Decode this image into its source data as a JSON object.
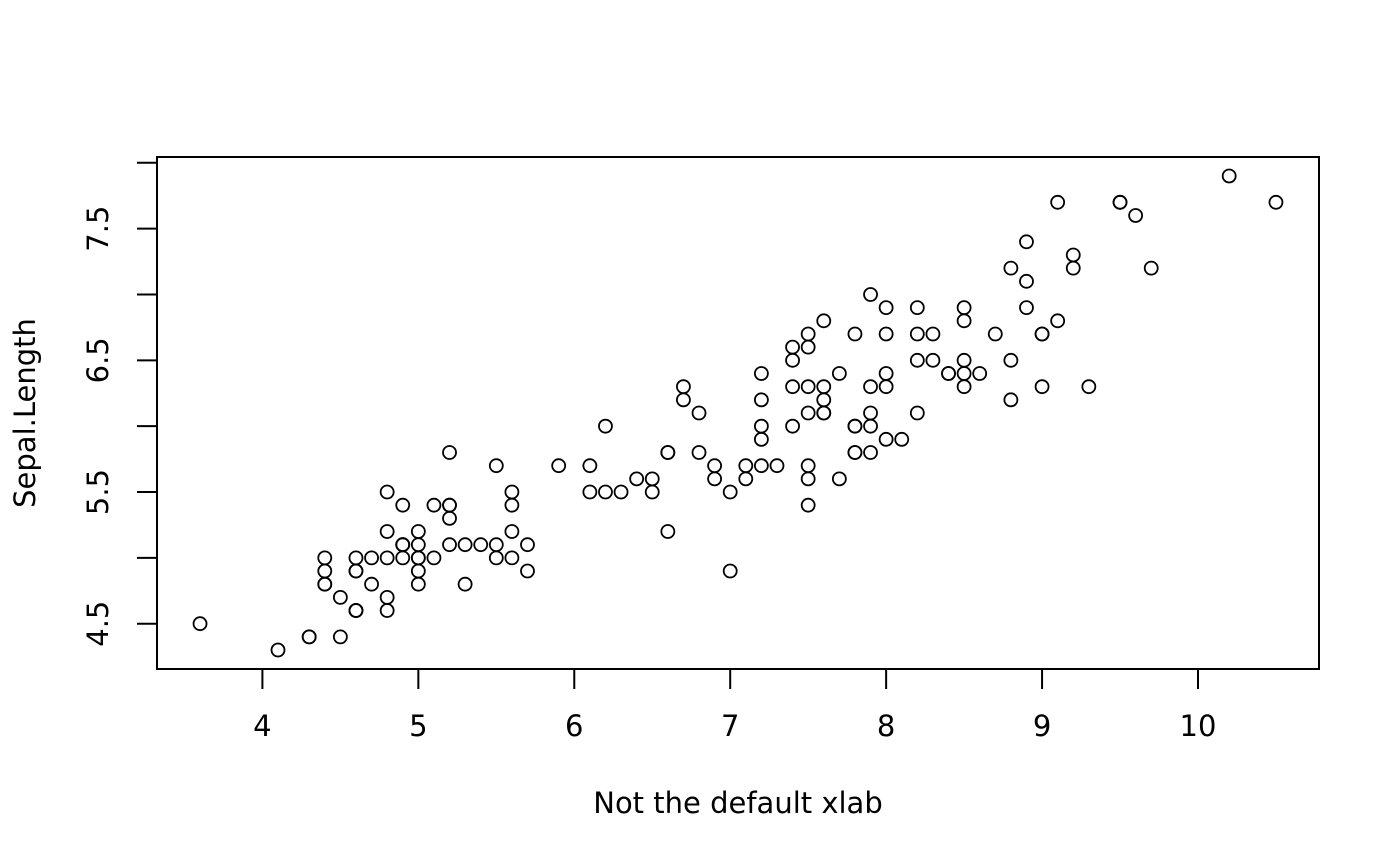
{
  "chart_data": {
    "type": "scatter",
    "x_label": "Not the default xlab",
    "y_label": "Sepal.Length",
    "x": [
      4.9,
      4.4,
      4.5,
      4.6,
      5.0,
      5.6,
      4.8,
      4.9,
      4.3,
      4.6,
      5.2,
      5.0,
      4.4,
      4.1,
      5.2,
      5.9,
      5.2,
      4.9,
      5.5,
      5.3,
      5.1,
      5.2,
      4.6,
      5.0,
      5.3,
      4.6,
      5.0,
      5.0,
      4.8,
      4.8,
      4.7,
      4.9,
      5.6,
      5.6,
      4.6,
      4.4,
      4.8,
      5.0,
      4.3,
      4.9,
      4.8,
      3.6,
      4.5,
      5.1,
      5.7,
      4.4,
      5.4,
      4.6,
      5.2,
      4.7,
      7.9,
      7.7,
      8.0,
      6.3,
      7.4,
      7.3,
      8.0,
      5.7,
      7.5,
      6.6,
      5.5,
      7.2,
      6.2,
      7.6,
      6.5,
      7.5,
      7.5,
      6.8,
      6.7,
      6.4,
      8.0,
      6.8,
      7.4,
      7.5,
      7.2,
      7.4,
      7.6,
      8.0,
      7.4,
      6.1,
      6.2,
      6.1,
      6.6,
      7.8,
      7.5,
      7.9,
      7.8,
      6.7,
      7.1,
      6.5,
      7.0,
      7.6,
      6.6,
      5.6,
      6.9,
      7.2,
      7.1,
      7.2,
      5.5,
      6.9,
      9.3,
      7.8,
      8.9,
      8.5,
      8.8,
      9.6,
      7.0,
      9.2,
      8.3,
      9.7,
      8.3,
      8.0,
      8.5,
      7.5,
      7.9,
      8.5,
      8.5,
      10.5,
      9.5,
      7.2,
      8.9,
      7.7,
      9.5,
      7.6,
      9.0,
      9.2,
      7.6,
      7.9,
      8.4,
      8.8,
      8.9,
      10.2,
      8.4,
      7.9,
      8.2,
      9.1,
      9.0,
      8.6,
      7.8,
      8.5,
      8.7,
      8.2,
      7.8,
      9.1,
      9.0,
      8.2,
      7.5,
      8.2,
      8.8,
      8.1
    ],
    "values": [
      5.1,
      4.9,
      4.7,
      4.6,
      5.0,
      5.4,
      4.6,
      5.0,
      4.4,
      4.9,
      5.4,
      4.8,
      4.8,
      4.3,
      5.8,
      5.7,
      5.4,
      5.1,
      5.7,
      5.1,
      5.4,
      5.1,
      4.6,
      5.1,
      4.8,
      5.0,
      5.0,
      5.2,
      5.2,
      4.7,
      4.8,
      5.4,
      5.2,
      5.5,
      4.9,
      5.0,
      5.5,
      4.9,
      4.4,
      5.1,
      5.0,
      4.5,
      4.4,
      5.0,
      5.1,
      4.8,
      5.1,
      4.6,
      5.3,
      5.0,
      7.0,
      6.4,
      6.9,
      5.5,
      6.5,
      5.7,
      6.3,
      4.9,
      6.6,
      5.2,
      5.0,
      5.9,
      6.0,
      6.1,
      5.6,
      6.7,
      5.6,
      5.8,
      6.2,
      5.6,
      5.9,
      6.1,
      6.3,
      6.1,
      6.4,
      6.6,
      6.8,
      6.7,
      6.0,
      5.7,
      5.5,
      5.5,
      5.8,
      6.0,
      5.4,
      6.0,
      6.7,
      6.3,
      5.6,
      5.5,
      5.5,
      6.1,
      5.8,
      5.0,
      5.6,
      5.7,
      5.7,
      6.2,
      5.1,
      5.7,
      6.3,
      5.8,
      7.1,
      6.3,
      6.5,
      7.6,
      4.9,
      7.3,
      6.7,
      7.2,
      6.5,
      6.4,
      6.8,
      5.7,
      5.8,
      6.4,
      6.5,
      7.7,
      7.7,
      6.0,
      6.9,
      5.6,
      7.7,
      6.3,
      6.7,
      7.2,
      6.2,
      6.1,
      6.4,
      7.2,
      7.4,
      7.9,
      6.4,
      6.3,
      6.1,
      7.7,
      6.3,
      6.4,
      6.0,
      6.9,
      6.7,
      6.9,
      5.8,
      6.8,
      6.7,
      6.7,
      6.3,
      6.5,
      6.2,
      5.9
    ],
    "color": "#000000",
    "xlim": [
      3.324,
      10.776
    ],
    "xticks": [
      4,
      5,
      6,
      7,
      8,
      9,
      10
    ],
    "ylim": [
      4.156,
      8.044
    ],
    "yticks": [
      4.5,
      5.5,
      6.5,
      7.5
    ],
    "yminorticks": [
      5,
      6,
      7,
      8
    ]
  }
}
